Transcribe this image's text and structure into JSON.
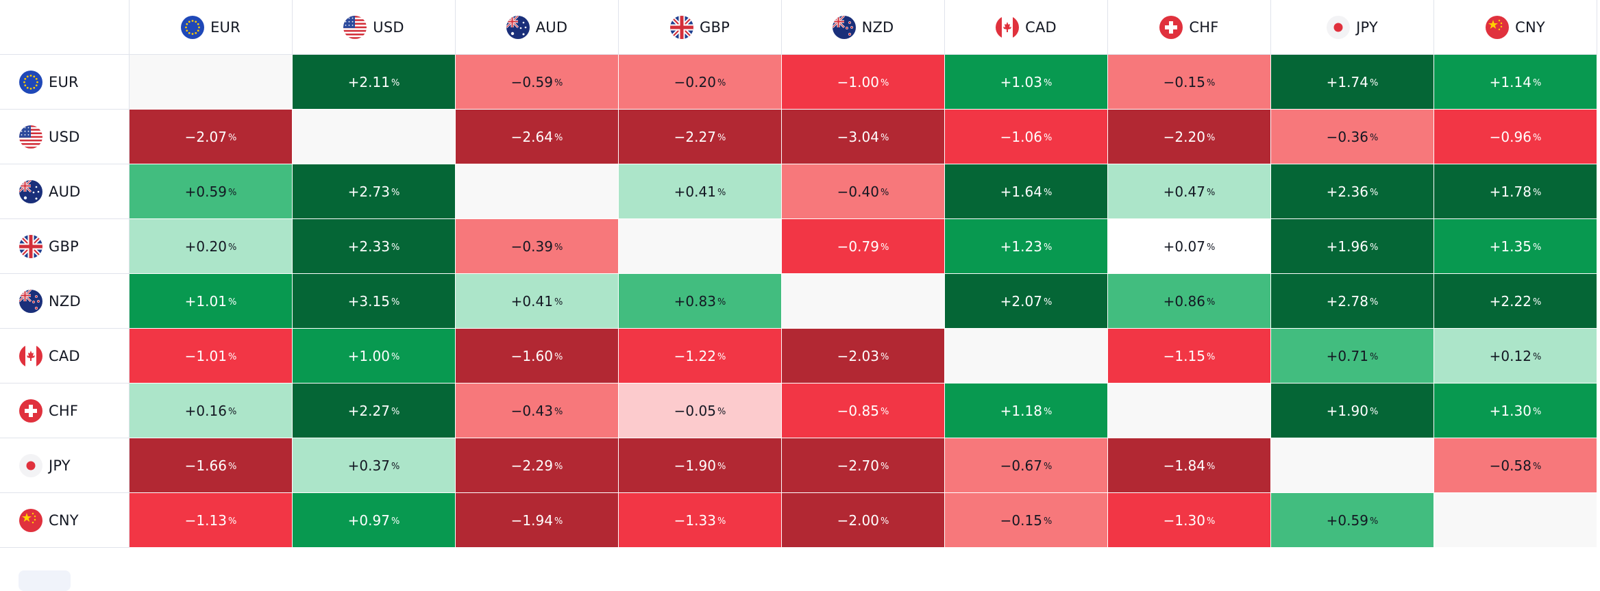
{
  "currencies": [
    {
      "code": "EUR",
      "flag_icon": "eu-flag-icon"
    },
    {
      "code": "USD",
      "flag_icon": "us-flag-icon"
    },
    {
      "code": "AUD",
      "flag_icon": "au-flag-icon"
    },
    {
      "code": "GBP",
      "flag_icon": "gb-flag-icon"
    },
    {
      "code": "NZD",
      "flag_icon": "nz-flag-icon"
    },
    {
      "code": "CAD",
      "flag_icon": "ca-flag-icon"
    },
    {
      "code": "CHF",
      "flag_icon": "ch-flag-icon"
    },
    {
      "code": "JPY",
      "flag_icon": "jp-flag-icon"
    },
    {
      "code": "CNY",
      "flag_icon": "cn-flag-icon"
    }
  ],
  "percent_sign": "%",
  "matrix": [
    [
      null,
      "+2.11",
      "−0.59",
      "−0.20",
      "−1.00",
      "+1.03",
      "−0.15",
      "+1.74",
      "+1.14"
    ],
    [
      "−2.07",
      null,
      "−2.64",
      "−2.27",
      "−3.04",
      "−1.06",
      "−2.20",
      "−0.36",
      "−0.96"
    ],
    [
      "+0.59",
      "+2.73",
      null,
      "+0.41",
      "−0.40",
      "+1.64",
      "+0.47",
      "+2.36",
      "+1.78"
    ],
    [
      "+0.20",
      "+2.33",
      "−0.39",
      null,
      "−0.79",
      "+1.23",
      "+0.07",
      "+1.96",
      "+1.35"
    ],
    [
      "+1.01",
      "+3.15",
      "+0.41",
      "+0.83",
      null,
      "+2.07",
      "+0.86",
      "+2.78",
      "+2.22"
    ],
    [
      "−1.01",
      "+1.00",
      "−1.60",
      "−1.22",
      "−2.03",
      null,
      "−1.15",
      "+0.71",
      "+0.12"
    ],
    [
      "+0.16",
      "+2.27",
      "−0.43",
      "−0.05",
      "−0.85",
      "+1.18",
      null,
      "+1.90",
      "+1.30"
    ],
    [
      "−1.66",
      "+0.37",
      "−2.29",
      "−1.90",
      "−2.70",
      "−0.67",
      "−1.84",
      null,
      "−0.58"
    ],
    [
      "−1.13",
      "+0.97",
      "−1.94",
      "−1.33",
      "−2.00",
      "−0.15",
      "−1.30",
      "+0.59",
      null
    ]
  ],
  "colors": {
    "diagonal": "#f8f8f8",
    "neutral": "#ffffff",
    "pos_weak": "#ace5c9",
    "pos_light": "#42bd7f",
    "pos_mid": "#089950",
    "pos_strong": "#056636",
    "neg_weak": "#fccbcd",
    "neg_light": "#f7787b",
    "neg_mid": "#f23645",
    "neg_strong": "#b22833",
    "text_dark": "#131722",
    "text_light": "#ffffff"
  }
}
